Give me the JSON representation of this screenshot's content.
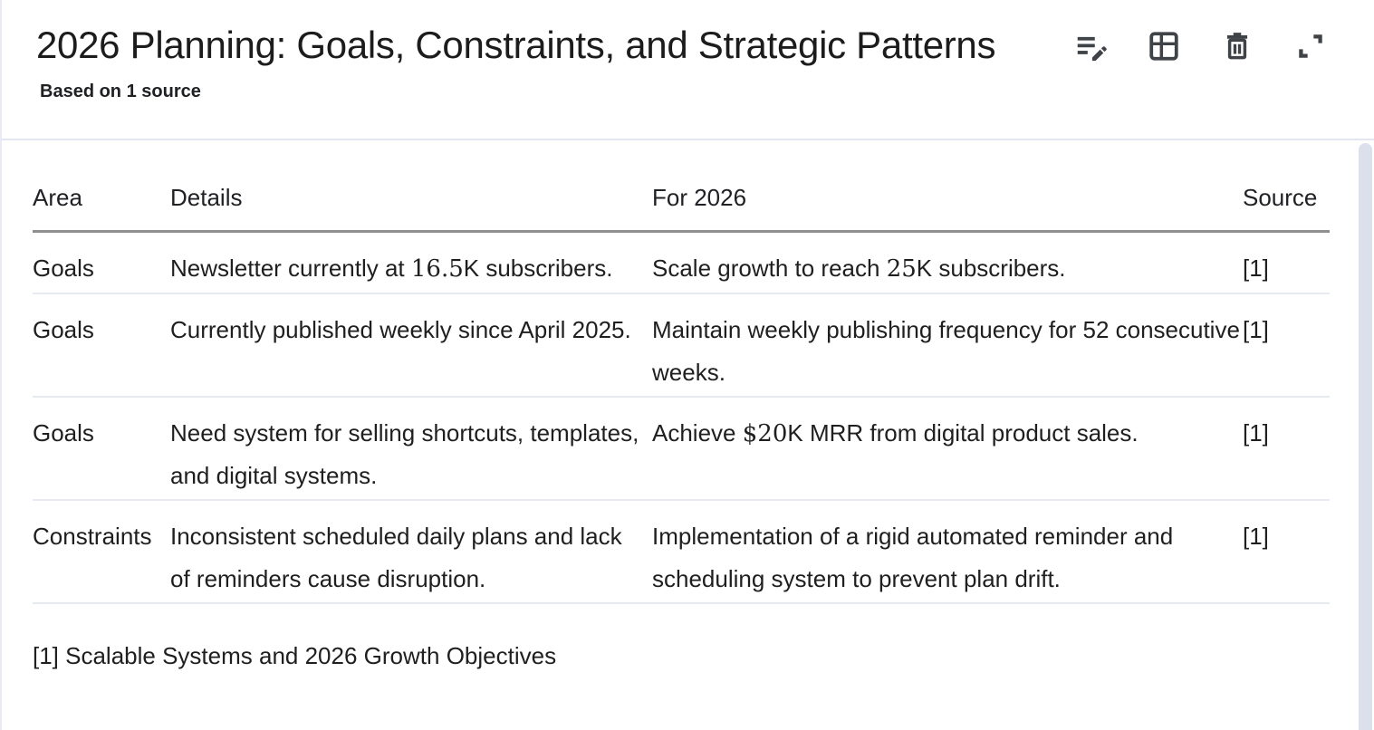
{
  "header": {
    "title": "2026 Planning: Goals, Constraints, and Strategic Patterns",
    "subtitle": "Based on 1 source",
    "actions": [
      {
        "id": "edit",
        "icon": "edit-note-icon"
      },
      {
        "id": "convert-to-table",
        "icon": "table-icon"
      },
      {
        "id": "delete",
        "icon": "trash-icon"
      },
      {
        "id": "expand",
        "icon": "expand-icon"
      }
    ]
  },
  "table": {
    "columns": [
      "Area",
      "Details",
      "For 2026",
      "Source"
    ],
    "rows": [
      {
        "area": "Goals",
        "details": [
          {
            "text": "Newsletter currently at "
          },
          {
            "text": "16.5",
            "serif": true
          },
          {
            "text": "K subscribers."
          }
        ],
        "for_2026": [
          {
            "text": "Scale growth to reach "
          },
          {
            "text": "25",
            "serif": true
          },
          {
            "text": "K subscribers."
          }
        ],
        "source": "[1]"
      },
      {
        "area": "Goals",
        "details": [
          {
            "text": "Currently published weekly since April 2025."
          }
        ],
        "for_2026": [
          {
            "text": "Maintain weekly publishing frequency for 52 consecutive weeks."
          }
        ],
        "source": "[1]"
      },
      {
        "area": "Goals",
        "details": [
          {
            "text": "Need system for selling shortcuts, templates, and digital systems."
          }
        ],
        "for_2026": [
          {
            "text": "Achieve "
          },
          {
            "text": "$20",
            "serif": true
          },
          {
            "text": "K MRR from digital product sales."
          }
        ],
        "source": "[1]"
      },
      {
        "area": "Constraints",
        "details": [
          {
            "text": "Inconsistent scheduled daily plans and lack of reminders cause disruption."
          }
        ],
        "for_2026": [
          {
            "text": "Implementation of a rigid automated reminder and scheduling system to prevent plan drift."
          }
        ],
        "source": "[1]"
      }
    ],
    "footnote": "[1] Scalable Systems and 2026 Growth Objectives"
  },
  "colors": {
    "text": "#1f1f1f",
    "icon": "#3f4246",
    "header_rule": "#8f8f8f",
    "row_divider": "#e7eaf2",
    "panel_divider": "#e3e6f0",
    "scrollbar": "#dce0eb"
  }
}
